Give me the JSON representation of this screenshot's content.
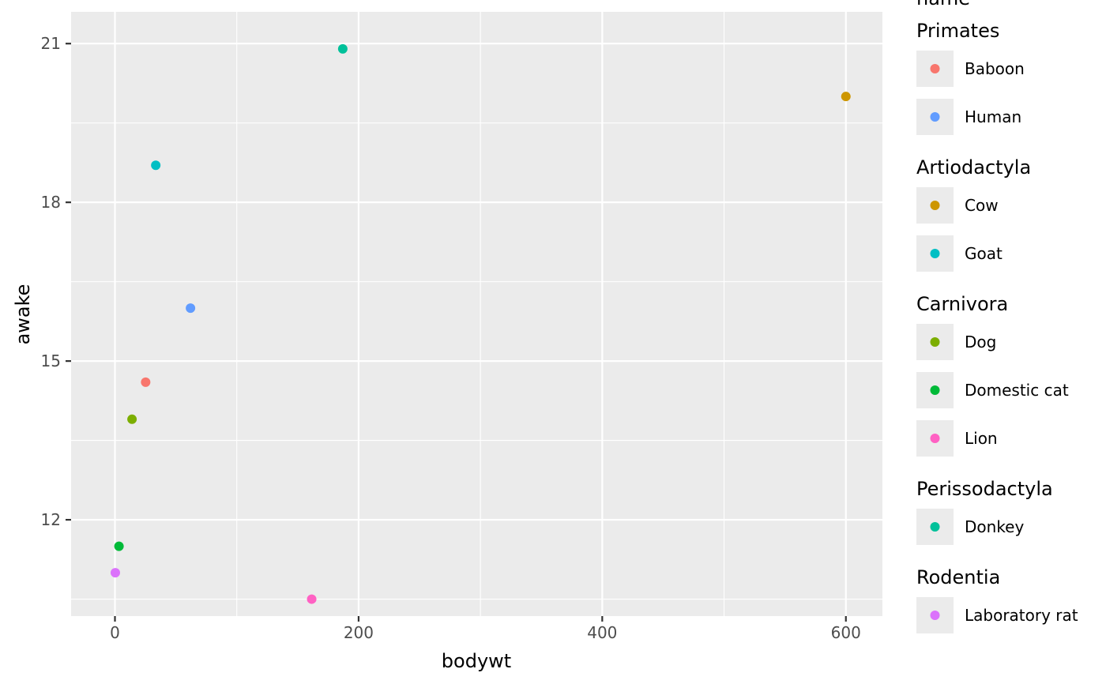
{
  "chart_data": {
    "type": "scatter",
    "xlabel": "bodywt",
    "ylabel": "awake",
    "xlim": [
      -36,
      630
    ],
    "ylim": [
      10.18,
      21.6
    ],
    "x_ticks": [
      0,
      200,
      400,
      600
    ],
    "x_tick_labels": [
      "0",
      "200",
      "400",
      "600"
    ],
    "y_ticks": [
      12,
      15,
      18,
      21
    ],
    "y_tick_labels": [
      "12",
      "15",
      "18",
      "21"
    ],
    "grid": true,
    "legend_position": "right",
    "legend_title": "name",
    "groups": [
      {
        "name": "Primates",
        "entries": [
          {
            "name": "Baboon",
            "color": "#F8766D",
            "x": 25.2,
            "y": 14.6
          },
          {
            "name": "Human",
            "color": "#619CFF",
            "x": 62.0,
            "y": 16.0
          }
        ]
      },
      {
        "name": "Artiodactyla",
        "entries": [
          {
            "name": "Cow",
            "color": "#CD9600",
            "x": 600.0,
            "y": 20.0
          },
          {
            "name": "Goat",
            "color": "#00BFC4",
            "x": 33.5,
            "y": 18.7
          }
        ]
      },
      {
        "name": "Carnivora",
        "entries": [
          {
            "name": "Dog",
            "color": "#7CAE00",
            "x": 14.0,
            "y": 13.9
          },
          {
            "name": "Domestic cat",
            "color": "#00BA38",
            "x": 3.3,
            "y": 11.5
          },
          {
            "name": "Lion",
            "color": "#FF61C3",
            "x": 161.5,
            "y": 10.5
          }
        ]
      },
      {
        "name": "Perissodactyla",
        "entries": [
          {
            "name": "Donkey",
            "color": "#00C19A",
            "x": 187.0,
            "y": 20.9
          }
        ]
      },
      {
        "name": "Rodentia",
        "entries": [
          {
            "name": "Laboratory rat",
            "color": "#DB72FB",
            "x": 0.3,
            "y": 11.0
          }
        ]
      }
    ]
  }
}
